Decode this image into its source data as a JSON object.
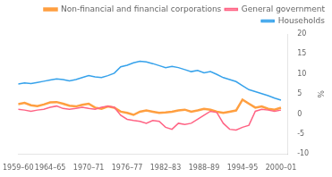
{
  "chart_data": {
    "type": "line",
    "ylabel": "%",
    "x": [
      1959,
      1960,
      1961,
      1962,
      1963,
      1964,
      1965,
      1966,
      1967,
      1968,
      1969,
      1970,
      1971,
      1972,
      1973,
      1974,
      1975,
      1976,
      1977,
      1978,
      1979,
      1980,
      1981,
      1982,
      1983,
      1984,
      1985,
      1986,
      1987,
      1988,
      1989,
      1990,
      1991,
      1992,
      1993,
      1994,
      1995,
      1996,
      1997,
      1998,
      1999,
      2000
    ],
    "xlim": [
      1959,
      2001
    ],
    "xticks": [
      {
        "value": 1959,
        "label": "1959–60"
      },
      {
        "value": 1964,
        "label": "1964–65"
      },
      {
        "value": 1970,
        "label": "1970–71"
      },
      {
        "value": 1976,
        "label": "1976–77"
      },
      {
        "value": 1982,
        "label": "1982–83"
      },
      {
        "value": 1988,
        "label": "1988–89"
      },
      {
        "value": 1994,
        "label": "1994–95"
      },
      {
        "value": 2000,
        "label": "2000–01"
      }
    ],
    "ylim": [
      -10,
      20
    ],
    "yticks": [
      -10,
      -5,
      0,
      5,
      10,
      15,
      20
    ],
    "grid": false,
    "legend": "upper right",
    "series": [
      {
        "name": "Households",
        "values": [
          7.5,
          7.8,
          7.6,
          7.9,
          8.2,
          8.5,
          8.8,
          8.6,
          8.3,
          8.6,
          9.1,
          9.6,
          9.3,
          9.1,
          9.6,
          10.2,
          11.8,
          12.2,
          12.8,
          13.2,
          13.0,
          12.6,
          12.1,
          11.6,
          11.9,
          11.6,
          11.1,
          10.6,
          10.9,
          10.3,
          10.6,
          9.9,
          9.1,
          8.6,
          8.1,
          7.1,
          6.1,
          5.6,
          5.1,
          4.6,
          4.0,
          3.5
        ]
      },
      {
        "name": "General government",
        "values": [
          1.2,
          1.0,
          0.7,
          1.0,
          1.2,
          1.7,
          2.0,
          1.4,
          1.2,
          1.4,
          1.7,
          1.4,
          1.2,
          1.7,
          2.0,
          1.7,
          -0.3,
          -1.3,
          -1.6,
          -1.8,
          -2.3,
          -1.6,
          -1.8,
          -3.3,
          -3.8,
          -2.3,
          -2.6,
          -2.3,
          -1.3,
          -0.3,
          0.7,
          0.4,
          -2.3,
          -3.8,
          -4.0,
          -3.3,
          -2.8,
          0.7,
          1.2,
          1.0,
          0.7,
          1.0
        ]
      },
      {
        "name": "Non-financial and financial corporations",
        "values": [
          2.5,
          2.8,
          2.2,
          2.0,
          2.4,
          2.9,
          3.0,
          2.6,
          2.1,
          1.9,
          2.3,
          2.6,
          1.6,
          1.3,
          1.9,
          1.6,
          0.6,
          0.3,
          -0.2,
          0.6,
          0.9,
          0.6,
          0.3,
          0.4,
          0.6,
          0.9,
          1.1,
          0.6,
          0.9,
          1.3,
          1.1,
          0.6,
          0.3,
          0.6,
          0.9,
          3.6,
          2.6,
          1.6,
          1.9,
          1.3,
          1.1,
          1.6
        ]
      }
    ]
  }
}
